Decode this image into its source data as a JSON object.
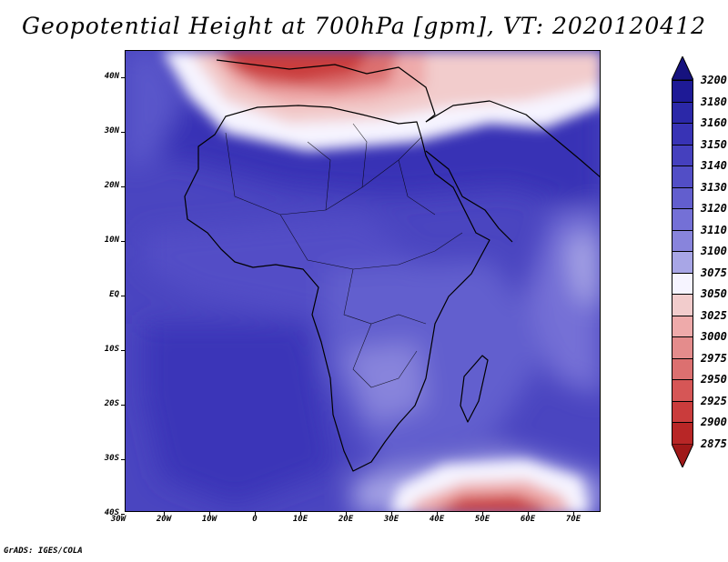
{
  "title": "Geopotential Height at 700hPa [gpm], VT: 2020120412",
  "credit": "GrADS: IGES/COLA",
  "lat_labels": [
    "40N",
    "30N",
    "20N",
    "10N",
    "EQ",
    "10S",
    "20S",
    "30S",
    "40S"
  ],
  "lon_labels": [
    "30W",
    "20W",
    "10W",
    "0",
    "10E",
    "20E",
    "30E",
    "40E",
    "50E",
    "60E",
    "70E"
  ],
  "colorbar": {
    "levels": [
      "3200",
      "3180",
      "3160",
      "3150",
      "3140",
      "3130",
      "3120",
      "3110",
      "3100",
      "3075",
      "3050",
      "3025",
      "3000",
      "2975",
      "2950",
      "2925",
      "2900",
      "2875"
    ],
    "colors": [
      "#1e1a96",
      "#2b28a8",
      "#3833b5",
      "#4540be",
      "#524ec6",
      "#625ece",
      "#7470d6",
      "#8884dc",
      "#a8a6e6",
      "#f6f4ff",
      "#f2cccc",
      "#eeaaaa",
      "#e48c8c",
      "#dc7070",
      "#d65656",
      "#ca3c3c",
      "#b82626"
    ],
    "top_arrow_color": "#16127e",
    "bottom_arrow_color": "#a01818"
  }
}
